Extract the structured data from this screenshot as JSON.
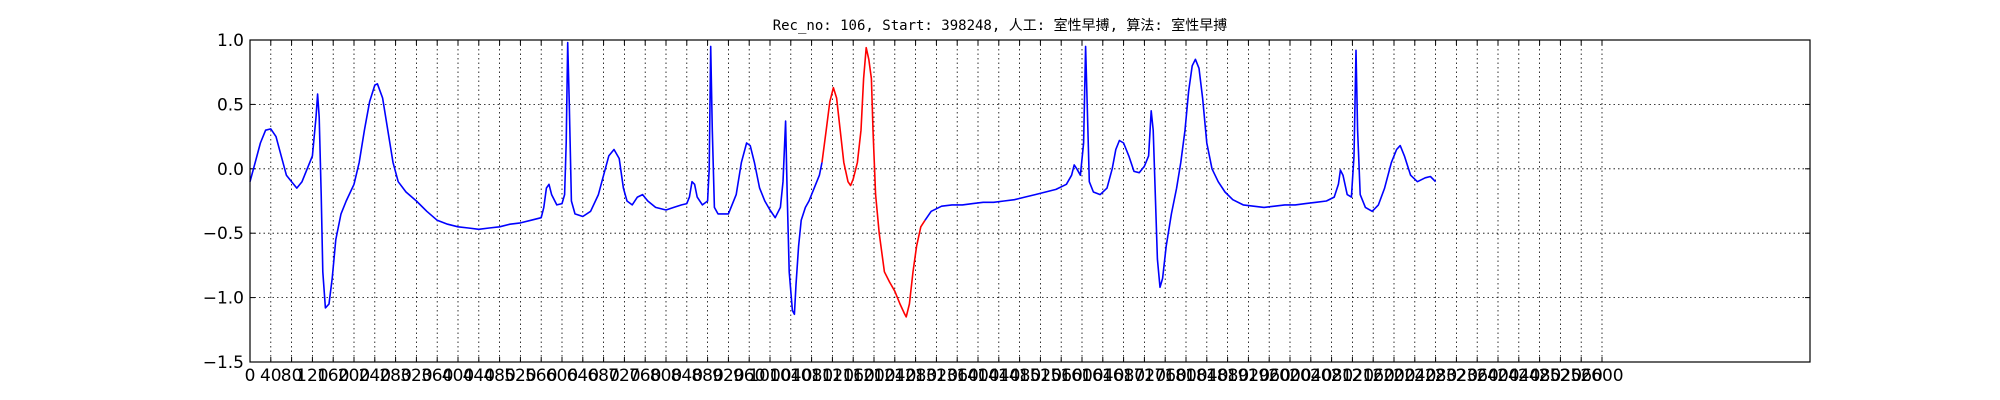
{
  "chart_data": {
    "type": "line",
    "title": "Rec_no: 106, Start: 398248, 人工: 室性早搏, 算法: 室性早搏",
    "xlabel": "",
    "ylabel": "",
    "xlim": [
      0,
      3000
    ],
    "ylim": [
      -1.5,
      1.0
    ],
    "grid": true,
    "grid_style": "dotted",
    "yticks": [
      1.0,
      0.5,
      0.0,
      -0.5,
      -1.0,
      -1.5
    ],
    "ytick_labels": [
      "1.0",
      "0.5",
      "0.0",
      "−0.5",
      "−1.0",
      "−1.5"
    ],
    "xtick_step": 40,
    "xtick_max": 2600,
    "colors": {
      "normal": "#0000ff",
      "highlight": "#ff0000"
    },
    "series": [
      {
        "color": "#0000ff",
        "points": [
          [
            0,
            -0.1
          ],
          [
            10,
            0.05
          ],
          [
            20,
            0.2
          ],
          [
            30,
            0.3
          ],
          [
            40,
            0.31
          ],
          [
            50,
            0.25
          ],
          [
            60,
            0.1
          ],
          [
            70,
            -0.05
          ],
          [
            80,
            -0.1
          ],
          [
            90,
            -0.15
          ],
          [
            100,
            -0.1
          ],
          [
            110,
            0.0
          ],
          [
            120,
            0.1
          ],
          [
            127,
            0.4
          ],
          [
            130,
            0.58
          ],
          [
            133,
            0.4
          ],
          [
            137,
            -0.2
          ],
          [
            140,
            -0.8
          ],
          [
            145,
            -1.08
          ],
          [
            152,
            -1.05
          ],
          [
            158,
            -0.85
          ],
          [
            165,
            -0.55
          ],
          [
            175,
            -0.35
          ],
          [
            185,
            -0.25
          ],
          [
            200,
            -0.12
          ],
          [
            210,
            0.05
          ],
          [
            220,
            0.3
          ],
          [
            230,
            0.52
          ],
          [
            240,
            0.65
          ],
          [
            245,
            0.66
          ],
          [
            255,
            0.55
          ],
          [
            265,
            0.3
          ],
          [
            275,
            0.05
          ],
          [
            285,
            -0.1
          ],
          [
            300,
            -0.18
          ],
          [
            320,
            -0.25
          ],
          [
            340,
            -0.33
          ],
          [
            360,
            -0.4
          ],
          [
            380,
            -0.43
          ],
          [
            400,
            -0.45
          ],
          [
            420,
            -0.46
          ],
          [
            440,
            -0.47
          ],
          [
            460,
            -0.46
          ],
          [
            480,
            -0.45
          ],
          [
            500,
            -0.43
          ],
          [
            520,
            -0.42
          ],
          [
            540,
            -0.4
          ],
          [
            560,
            -0.38
          ],
          [
            565,
            -0.3
          ],
          [
            570,
            -0.15
          ],
          [
            575,
            -0.12
          ],
          [
            580,
            -0.2
          ],
          [
            590,
            -0.28
          ],
          [
            600,
            -0.27
          ],
          [
            605,
            -0.2
          ],
          [
            608,
            0.2
          ],
          [
            611,
            0.98
          ],
          [
            614,
            0.5
          ],
          [
            618,
            -0.25
          ],
          [
            625,
            -0.35
          ],
          [
            640,
            -0.37
          ],
          [
            655,
            -0.33
          ],
          [
            670,
            -0.2
          ],
          [
            680,
            -0.05
          ],
          [
            690,
            0.1
          ],
          [
            700,
            0.15
          ],
          [
            710,
            0.08
          ],
          [
            718,
            -0.15
          ],
          [
            725,
            -0.25
          ],
          [
            735,
            -0.28
          ],
          [
            745,
            -0.22
          ],
          [
            755,
            -0.2
          ],
          [
            765,
            -0.25
          ],
          [
            780,
            -0.3
          ],
          [
            800,
            -0.32
          ],
          [
            815,
            -0.3
          ],
          [
            830,
            -0.28
          ],
          [
            840,
            -0.27
          ],
          [
            845,
            -0.22
          ],
          [
            850,
            -0.1
          ],
          [
            855,
            -0.12
          ],
          [
            860,
            -0.22
          ],
          [
            870,
            -0.28
          ],
          [
            880,
            -0.25
          ],
          [
            883,
            0.0
          ],
          [
            886,
            0.95
          ],
          [
            889,
            0.3
          ],
          [
            893,
            -0.3
          ],
          [
            900,
            -0.35
          ],
          [
            920,
            -0.35
          ],
          [
            935,
            -0.2
          ],
          [
            945,
            0.05
          ],
          [
            955,
            0.2
          ],
          [
            962,
            0.18
          ],
          [
            970,
            0.05
          ],
          [
            980,
            -0.15
          ],
          [
            990,
            -0.25
          ],
          [
            1000,
            -0.32
          ],
          [
            1010,
            -0.38
          ],
          [
            1020,
            -0.3
          ],
          [
            1025,
            -0.1
          ],
          [
            1030,
            0.37
          ],
          [
            1033,
            -0.2
          ],
          [
            1037,
            -0.8
          ],
          [
            1043,
            -1.1
          ],
          [
            1047,
            -1.13
          ],
          [
            1050,
            -0.9
          ],
          [
            1055,
            -0.6
          ],
          [
            1060,
            -0.4
          ],
          [
            1068,
            -0.3
          ],
          [
            1075,
            -0.25
          ],
          [
            1085,
            -0.15
          ],
          [
            1095,
            -0.05
          ],
          [
            1100,
            0.05
          ]
        ]
      },
      {
        "color": "#ff0000",
        "points": [
          [
            1100,
            0.05
          ],
          [
            1108,
            0.3
          ],
          [
            1115,
            0.52
          ],
          [
            1122,
            0.63
          ],
          [
            1128,
            0.55
          ],
          [
            1135,
            0.3
          ],
          [
            1142,
            0.05
          ],
          [
            1150,
            -0.1
          ],
          [
            1155,
            -0.13
          ],
          [
            1160,
            -0.08
          ],
          [
            1168,
            0.05
          ],
          [
            1175,
            0.3
          ],
          [
            1180,
            0.7
          ],
          [
            1185,
            0.94
          ],
          [
            1190,
            0.85
          ],
          [
            1195,
            0.7
          ],
          [
            1198,
            0.3
          ],
          [
            1203,
            -0.2
          ],
          [
            1210,
            -0.5
          ],
          [
            1220,
            -0.8
          ],
          [
            1230,
            -0.88
          ],
          [
            1240,
            -0.95
          ],
          [
            1250,
            -1.05
          ],
          [
            1258,
            -1.12
          ],
          [
            1262,
            -1.15
          ],
          [
            1268,
            -1.05
          ],
          [
            1275,
            -0.8
          ],
          [
            1282,
            -0.6
          ],
          [
            1290,
            -0.45
          ],
          [
            1298,
            -0.4
          ]
        ]
      },
      {
        "color": "#0000ff",
        "points": [
          [
            1298,
            -0.4
          ],
          [
            1310,
            -0.33
          ],
          [
            1330,
            -0.29
          ],
          [
            1350,
            -0.28
          ],
          [
            1370,
            -0.28
          ],
          [
            1390,
            -0.27
          ],
          [
            1410,
            -0.26
          ],
          [
            1430,
            -0.26
          ],
          [
            1450,
            -0.25
          ],
          [
            1470,
            -0.24
          ],
          [
            1490,
            -0.22
          ],
          [
            1510,
            -0.2
          ],
          [
            1530,
            -0.18
          ],
          [
            1550,
            -0.16
          ],
          [
            1570,
            -0.12
          ],
          [
            1580,
            -0.05
          ],
          [
            1585,
            0.03
          ],
          [
            1590,
            0.0
          ],
          [
            1597,
            -0.05
          ],
          [
            1603,
            0.2
          ],
          [
            1607,
            0.95
          ],
          [
            1610,
            0.5
          ],
          [
            1614,
            -0.1
          ],
          [
            1622,
            -0.18
          ],
          [
            1635,
            -0.2
          ],
          [
            1648,
            -0.15
          ],
          [
            1658,
            0.0
          ],
          [
            1665,
            0.15
          ],
          [
            1672,
            0.22
          ],
          [
            1680,
            0.2
          ],
          [
            1690,
            0.1
          ],
          [
            1700,
            -0.02
          ],
          [
            1710,
            -0.03
          ],
          [
            1720,
            0.02
          ],
          [
            1728,
            0.1
          ],
          [
            1733,
            0.45
          ],
          [
            1737,
            0.3
          ],
          [
            1741,
            -0.2
          ],
          [
            1745,
            -0.7
          ],
          [
            1750,
            -0.92
          ],
          [
            1755,
            -0.85
          ],
          [
            1762,
            -0.6
          ],
          [
            1772,
            -0.35
          ],
          [
            1782,
            -0.15
          ],
          [
            1790,
            0.05
          ],
          [
            1798,
            0.3
          ],
          [
            1805,
            0.6
          ],
          [
            1812,
            0.8
          ],
          [
            1818,
            0.85
          ],
          [
            1825,
            0.78
          ],
          [
            1832,
            0.55
          ],
          [
            1840,
            0.2
          ],
          [
            1850,
            0.0
          ],
          [
            1862,
            -0.1
          ],
          [
            1875,
            -0.18
          ],
          [
            1890,
            -0.24
          ],
          [
            1910,
            -0.28
          ],
          [
            1930,
            -0.29
          ],
          [
            1950,
            -0.3
          ],
          [
            1970,
            -0.29
          ],
          [
            1990,
            -0.28
          ],
          [
            2010,
            -0.28
          ],
          [
            2030,
            -0.27
          ],
          [
            2050,
            -0.26
          ],
          [
            2070,
            -0.25
          ],
          [
            2085,
            -0.22
          ],
          [
            2093,
            -0.12
          ],
          [
            2097,
            -0.01
          ],
          [
            2102,
            -0.05
          ],
          [
            2110,
            -0.2
          ],
          [
            2118,
            -0.22
          ],
          [
            2123,
            0.1
          ],
          [
            2127,
            0.92
          ],
          [
            2130,
            0.3
          ],
          [
            2135,
            -0.2
          ],
          [
            2145,
            -0.3
          ],
          [
            2158,
            -0.33
          ],
          [
            2170,
            -0.28
          ],
          [
            2182,
            -0.15
          ],
          [
            2195,
            0.05
          ],
          [
            2205,
            0.15
          ],
          [
            2212,
            0.18
          ],
          [
            2220,
            0.1
          ],
          [
            2232,
            -0.05
          ],
          [
            2245,
            -0.1
          ],
          [
            2260,
            -0.07
          ],
          [
            2270,
            -0.06
          ],
          [
            2280,
            -0.1
          ]
        ]
      }
    ]
  }
}
